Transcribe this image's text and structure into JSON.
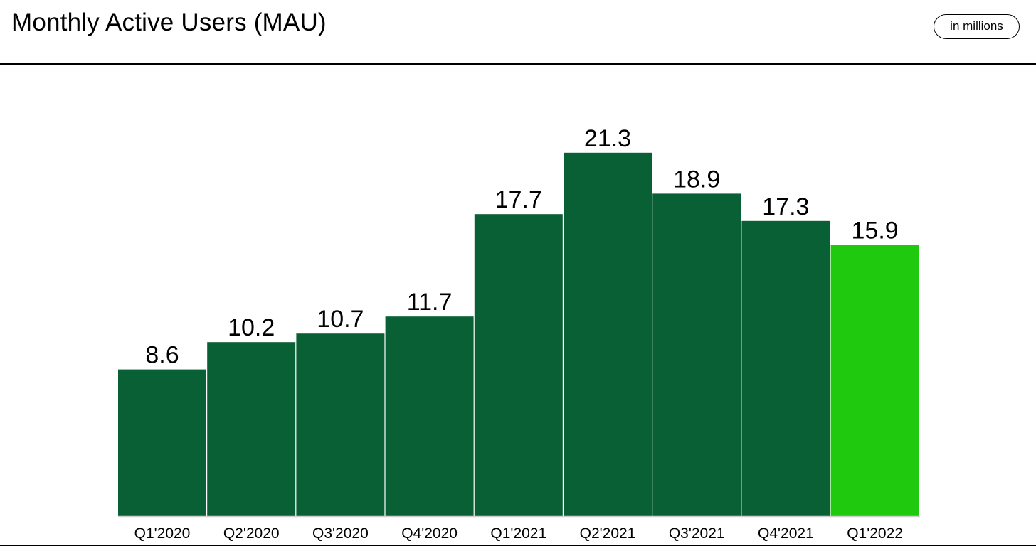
{
  "header": {
    "title": "Monthly Active Users (MAU)",
    "unit_label": "in millions"
  },
  "chart_data": {
    "type": "bar",
    "title": "Monthly Active Users (MAU)",
    "unit": "in millions",
    "xlabel": "",
    "ylabel": "",
    "grid": false,
    "legend": "none",
    "ylim": [
      0,
      24
    ],
    "categories": [
      "Q1'2020",
      "Q2'2020",
      "Q3'2020",
      "Q4'2020",
      "Q1'2021",
      "Q2'2021",
      "Q3'2021",
      "Q4'2021",
      "Q1'2022"
    ],
    "values": [
      8.6,
      10.2,
      10.7,
      11.7,
      17.7,
      21.3,
      18.9,
      17.3,
      15.9
    ],
    "value_labels": [
      "8.6",
      "10.2",
      "10.7",
      "11.7",
      "17.7",
      "21.3",
      "18.9",
      "17.3",
      "15.9"
    ],
    "highlight_index": 8,
    "colors": {
      "bar": "#0a6035",
      "highlight": "#1ec90e",
      "baseline": "#cfcfcf",
      "text": "#000000"
    }
  }
}
